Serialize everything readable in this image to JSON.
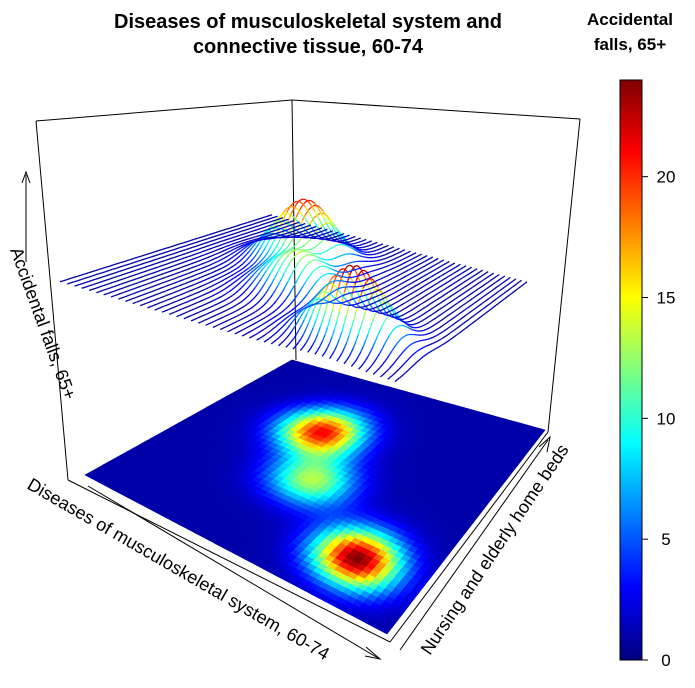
{
  "chart_data": {
    "type": "surface3d_with_image",
    "title": "Diseases of musculoskeletal system and connective tissue, 60-74",
    "title_lines": [
      "Diseases of musculoskeletal system and",
      "connective tissue, 60-74"
    ],
    "xlabel": "Diseases of musculoskeletal system, 60-74",
    "ylabel": "Nursing and elderly home beds",
    "zlabel": "Accidental falls, 65+",
    "colorbar": {
      "title_lines": [
        "Accidental",
        "falls, 65+"
      ],
      "range": [
        0,
        24
      ],
      "ticks": [
        0,
        5,
        10,
        15,
        20
      ],
      "tick_labels": [
        "0",
        "5",
        "10",
        "15",
        "20"
      ],
      "colormap": [
        "#00007F",
        "#0000FF",
        "#007FFF",
        "#00FFFF",
        "#7FFF7F",
        "#FFFF00",
        "#FF7F00",
        "#FF0000",
        "#7F0000"
      ]
    },
    "surface_peaks": [
      {
        "x": 0.78,
        "y": 0.22,
        "z": 24
      },
      {
        "x": 0.36,
        "y": 0.68,
        "z": 21
      },
      {
        "x": 0.48,
        "y": 0.45,
        "z": 13
      }
    ],
    "background_level": 1,
    "grid_on": false
  }
}
